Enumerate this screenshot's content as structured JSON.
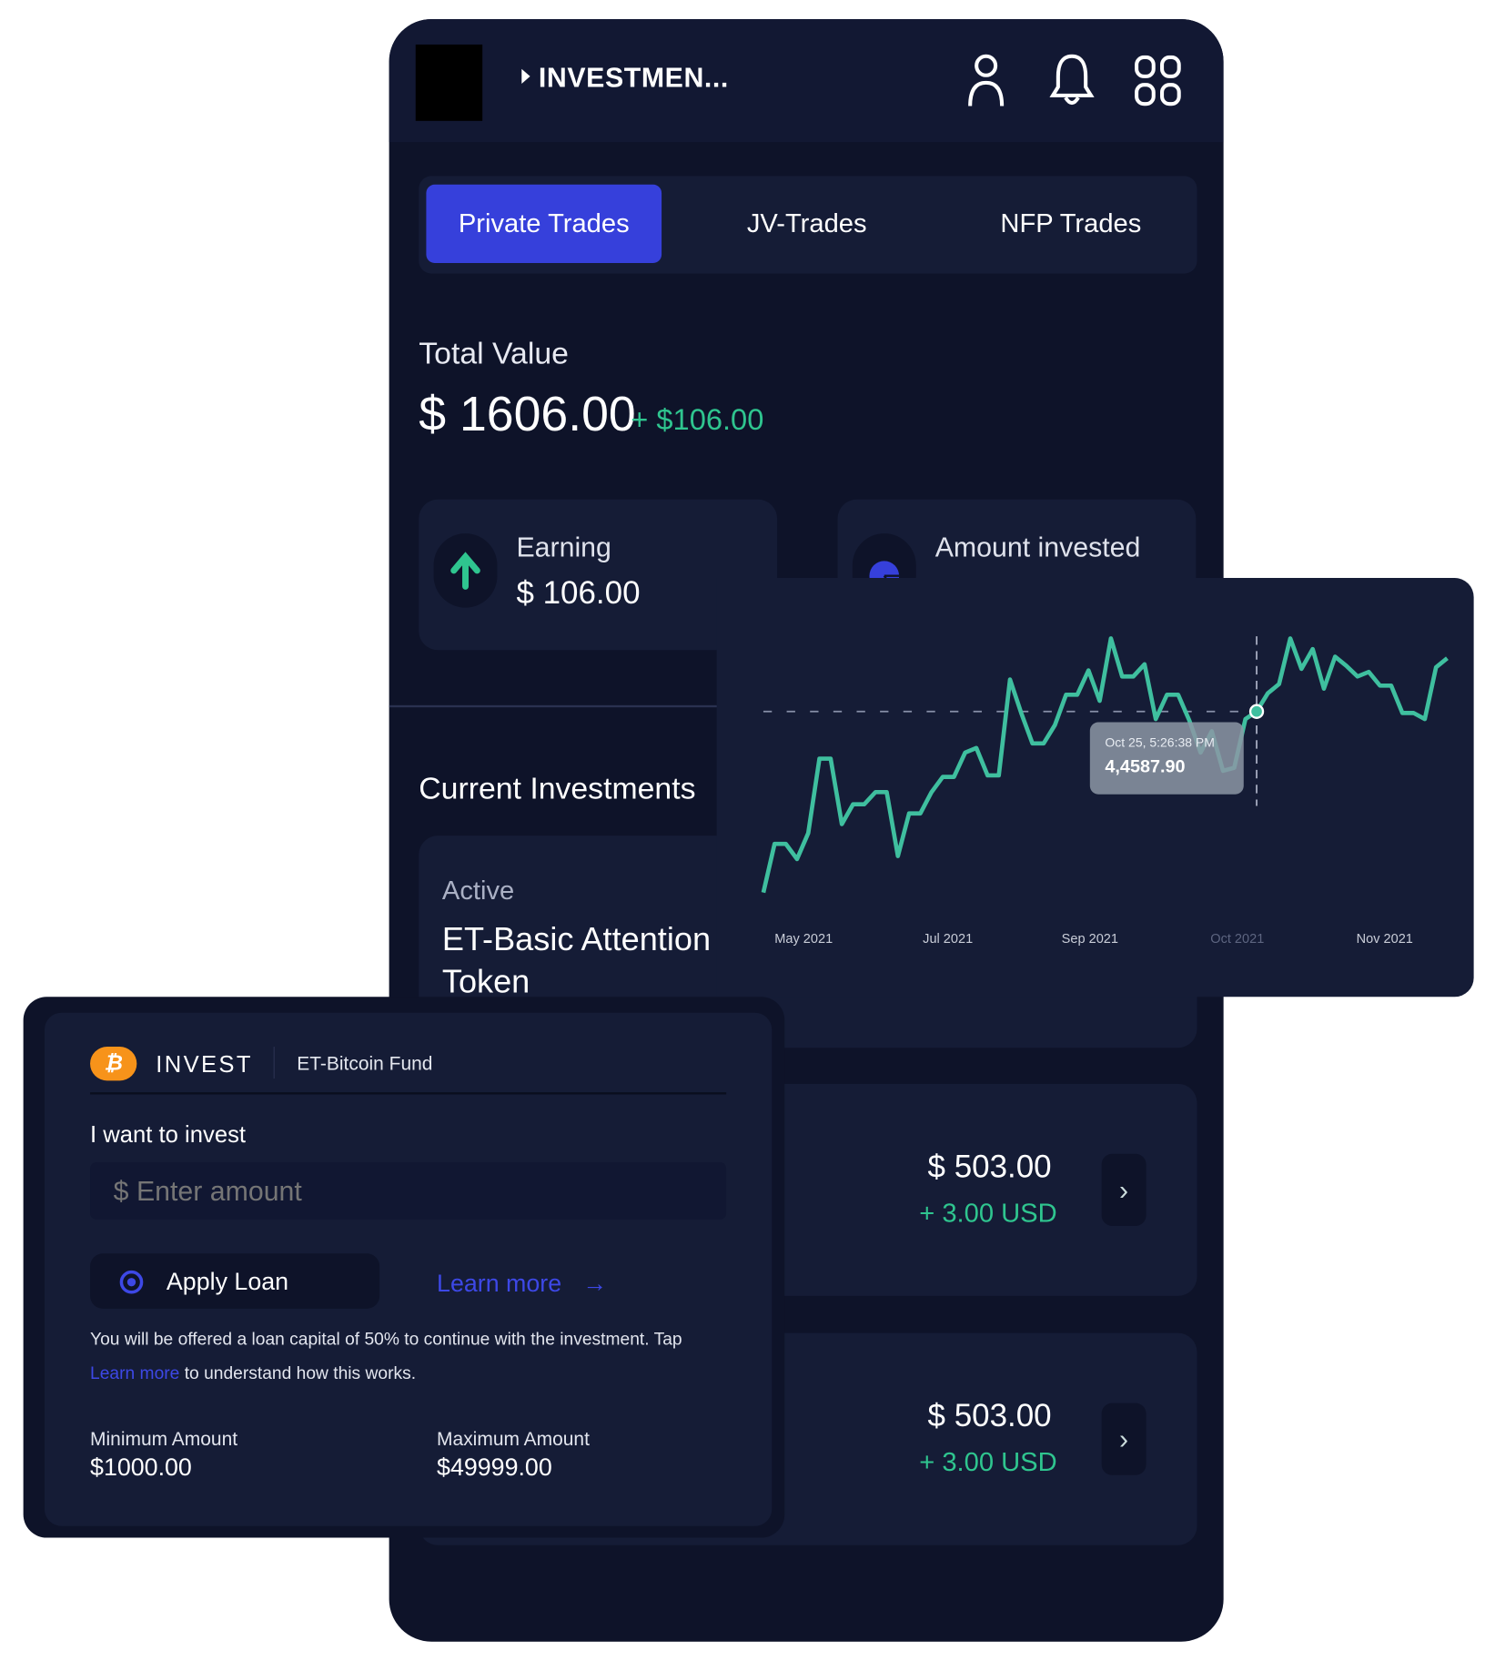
{
  "header": {
    "title": "INVESTMEN...",
    "icons": [
      "user-icon",
      "bell-icon",
      "apps-grid-icon"
    ]
  },
  "tabs": [
    {
      "label": "Private Trades",
      "active": true
    },
    {
      "label": "JV-Trades",
      "active": false
    },
    {
      "label": "NFP Trades",
      "active": false
    }
  ],
  "summary": {
    "label": "Total Value",
    "value": "$ 1606.00",
    "change": "+ $106.00"
  },
  "stats": [
    {
      "label": "Earning",
      "value": "$ 106.00",
      "icon": "arrow-up-icon"
    },
    {
      "label": "Amount invested",
      "icon": "pie-chart-icon"
    }
  ],
  "current": {
    "heading": "Current Investments",
    "active_label": "Active",
    "active_name": "ET-Basic Attention Token"
  },
  "investments": [
    {
      "amount": "$ 503.00",
      "change": "+ 3.00 USD"
    },
    {
      "amount": "$ 503.00",
      "change": "+ 3.00 USD"
    }
  ],
  "colors": {
    "accent": "#3640db",
    "positive": "#2fc58f",
    "line": "#3fbf9f",
    "bitcoin": "#f7931a"
  },
  "chart_data": {
    "type": "line",
    "x_ticks": [
      "May 2021",
      "Jul 2021",
      "Sep 2021",
      "Oct 2021",
      "Nov 2021"
    ],
    "values": [
      5,
      21,
      21,
      16,
      24.5,
      49,
      49,
      27.5,
      34,
      34,
      38,
      38,
      17,
      31,
      31,
      38,
      43,
      43,
      51,
      52.5,
      43.5,
      43.5,
      75,
      64,
      54,
      54,
      60,
      70,
      70,
      78,
      68,
      88.5,
      76,
      76,
      80,
      62,
      70,
      70,
      61.5,
      51,
      58,
      45,
      46,
      62,
      64.5,
      70.5,
      73.5,
      88.5,
      78.5,
      85,
      72,
      82.5,
      79.5,
      76,
      77.5,
      73,
      73,
      64,
      64,
      62,
      79,
      82
    ],
    "highlight_index": 44,
    "tooltip": {
      "date": "Oct 25, 5:26:38 PM",
      "value": "4,4587.90"
    },
    "grid": false
  },
  "invest_panel": {
    "title": "INVEST",
    "fund": "ET-Bitcoin Fund",
    "icon": "bitcoin-icon",
    "amount_label": "I want to invest",
    "amount_placeholder": "$ Enter amount",
    "apply_loan": "Apply Loan",
    "learn_more": "Learn more",
    "note_a": "You will be offered a loan capital of 50% to continue with the investment. Tap ",
    "note_link": "Learn more",
    "note_b": " to understand how this works.",
    "min_label": "Minimum Amount",
    "min_value": "$1000.00",
    "max_label": "Maximum Amount",
    "max_value": "$49999.00"
  }
}
